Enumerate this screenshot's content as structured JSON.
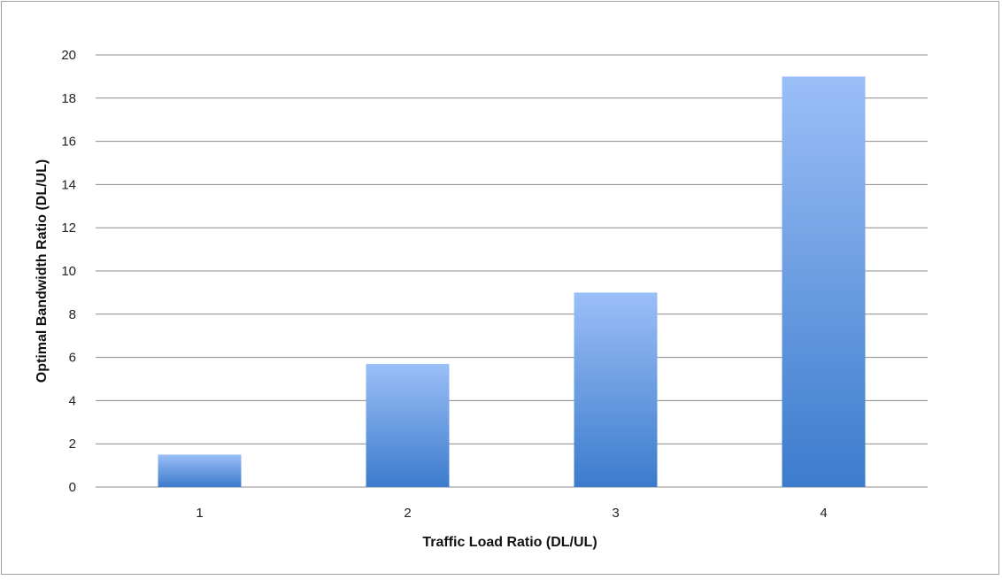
{
  "chart_data": {
    "type": "bar",
    "categories": [
      "1",
      "2",
      "3",
      "4"
    ],
    "values": [
      1.5,
      5.7,
      9,
      19
    ],
    "xlabel": "Traffic Load Ratio (DL/UL)",
    "ylabel": "Optimal Bandwidth Ratio (DL/UL)",
    "ylim": [
      0,
      20
    ],
    "yticks": [
      "0",
      "2",
      "4",
      "6",
      "8",
      "10",
      "12",
      "14",
      "16",
      "18",
      "20"
    ],
    "grid": true,
    "legend": "none",
    "colors": {
      "bar_top": "#9bbff7",
      "bar_bottom": "#3c7bcc",
      "grid": "#8c8c8c",
      "frame": "#9e9e9e"
    }
  }
}
